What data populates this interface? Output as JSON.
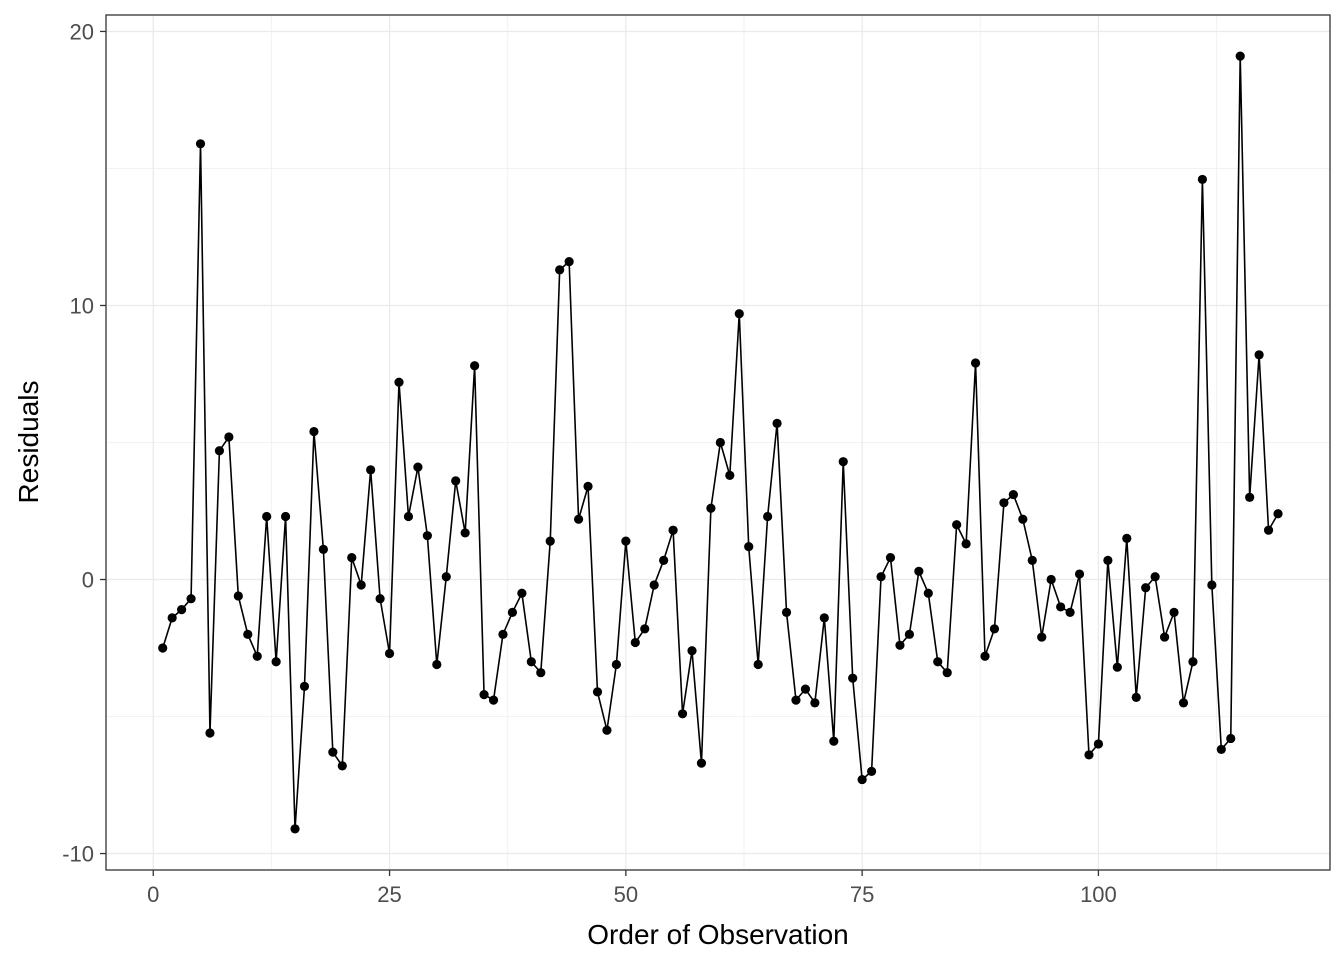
{
  "chart_data": {
    "type": "line",
    "title": "",
    "xlabel": "Order of Observation",
    "ylabel": "Residuals",
    "xlim": [
      -5,
      124.5
    ],
    "ylim": [
      -10.6,
      20.6
    ],
    "x_ticks": [
      0,
      25,
      50,
      75,
      100
    ],
    "x_tick_labels": [
      "0",
      "25",
      "50",
      "75",
      "100"
    ],
    "y_ticks": [
      -10,
      0,
      10,
      20
    ],
    "y_tick_labels": [
      "-10",
      "0",
      "10",
      "20"
    ],
    "grid": true,
    "legend": "none",
    "series": [
      {
        "line_color": "#000000",
        "point_color": "#000000",
        "points": [
          [
            1,
            -2.5
          ],
          [
            2,
            -1.4
          ],
          [
            3,
            -1.1
          ],
          [
            4,
            -0.7
          ],
          [
            5,
            15.9
          ],
          [
            6,
            -5.6
          ],
          [
            7,
            4.7
          ],
          [
            8,
            5.2
          ],
          [
            9,
            -0.6
          ],
          [
            10,
            -2.0
          ],
          [
            11,
            -2.8
          ],
          [
            12,
            2.3
          ],
          [
            13,
            -3.0
          ],
          [
            14,
            2.3
          ],
          [
            15,
            -9.1
          ],
          [
            16,
            -3.9
          ],
          [
            17,
            5.4
          ],
          [
            18,
            1.1
          ],
          [
            19,
            -6.3
          ],
          [
            20,
            -6.8
          ],
          [
            21,
            0.8
          ],
          [
            22,
            -0.2
          ],
          [
            23,
            4.0
          ],
          [
            24,
            -0.7
          ],
          [
            25,
            -2.7
          ],
          [
            26,
            7.2
          ],
          [
            27,
            2.3
          ],
          [
            28,
            4.1
          ],
          [
            29,
            1.6
          ],
          [
            30,
            -3.1
          ],
          [
            31,
            0.1
          ],
          [
            32,
            3.6
          ],
          [
            33,
            1.7
          ],
          [
            34,
            7.8
          ],
          [
            35,
            -4.2
          ],
          [
            36,
            -4.4
          ],
          [
            37,
            -2.0
          ],
          [
            38,
            -1.2
          ],
          [
            39,
            -0.5
          ],
          [
            40,
            -3.0
          ],
          [
            41,
            -3.4
          ],
          [
            42,
            1.4
          ],
          [
            43,
            11.3
          ],
          [
            44,
            11.6
          ],
          [
            45,
            2.2
          ],
          [
            46,
            3.4
          ],
          [
            47,
            -4.1
          ],
          [
            48,
            -5.5
          ],
          [
            49,
            -3.1
          ],
          [
            50,
            1.4
          ],
          [
            51,
            -2.3
          ],
          [
            52,
            -1.8
          ],
          [
            53,
            -0.2
          ],
          [
            54,
            0.7
          ],
          [
            55,
            1.8
          ],
          [
            56,
            -4.9
          ],
          [
            57,
            -2.6
          ],
          [
            58,
            -6.7
          ],
          [
            59,
            2.6
          ],
          [
            60,
            5.0
          ],
          [
            61,
            3.8
          ],
          [
            62,
            9.7
          ],
          [
            63,
            1.2
          ],
          [
            64,
            -3.1
          ],
          [
            65,
            2.3
          ],
          [
            66,
            5.7
          ],
          [
            67,
            -1.2
          ],
          [
            68,
            -4.4
          ],
          [
            69,
            -4.0
          ],
          [
            70,
            -4.5
          ],
          [
            71,
            -1.4
          ],
          [
            72,
            -5.9
          ],
          [
            73,
            4.3
          ],
          [
            74,
            -3.6
          ],
          [
            75,
            -7.3
          ],
          [
            76,
            -7.0
          ],
          [
            77,
            0.1
          ],
          [
            78,
            0.8
          ],
          [
            79,
            -2.4
          ],
          [
            80,
            -2.0
          ],
          [
            81,
            0.3
          ],
          [
            82,
            -0.5
          ],
          [
            83,
            -3.0
          ],
          [
            84,
            -3.4
          ],
          [
            85,
            2.0
          ],
          [
            86,
            1.3
          ],
          [
            87,
            7.9
          ],
          [
            88,
            -2.8
          ],
          [
            89,
            -1.8
          ],
          [
            90,
            2.8
          ],
          [
            91,
            3.1
          ],
          [
            92,
            2.2
          ],
          [
            93,
            0.7
          ],
          [
            94,
            -2.1
          ],
          [
            95,
            0.0
          ],
          [
            96,
            -1.0
          ],
          [
            97,
            -1.2
          ],
          [
            98,
            0.2
          ],
          [
            99,
            -6.4
          ],
          [
            100,
            -6.0
          ],
          [
            101,
            0.7
          ],
          [
            102,
            -3.2
          ],
          [
            103,
            1.5
          ],
          [
            104,
            -4.3
          ],
          [
            105,
            -0.3
          ],
          [
            106,
            0.1
          ],
          [
            107,
            -2.1
          ],
          [
            108,
            -1.2
          ],
          [
            109,
            -4.5
          ],
          [
            110,
            -3.0
          ],
          [
            111,
            14.6
          ],
          [
            112,
            -0.2
          ],
          [
            113,
            -6.2
          ],
          [
            114,
            -5.8
          ],
          [
            115,
            19.1
          ],
          [
            116,
            3.0
          ],
          [
            117,
            8.2
          ],
          [
            118,
            1.8
          ],
          [
            119,
            2.4
          ]
        ]
      }
    ]
  }
}
